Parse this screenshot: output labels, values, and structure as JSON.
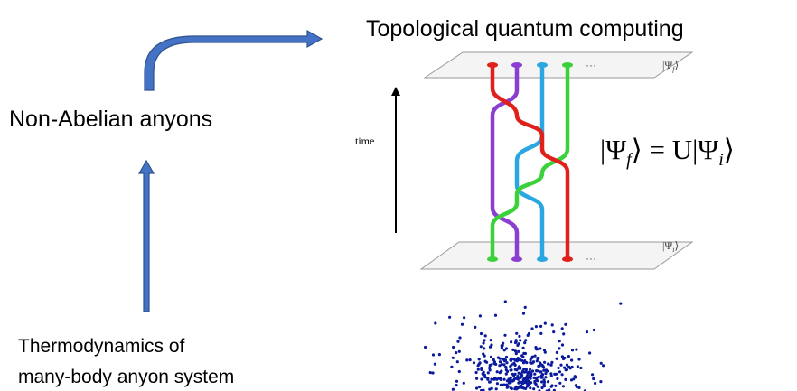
{
  "top_label": "Topological quantum computing",
  "middle_label": "Non-Abelian anyons",
  "bottom_label": {
    "lines": [
      "Thermodynamics of",
      "many-body anyon system"
    ]
  },
  "braid": {
    "axis_label": "time",
    "top_state": {
      "symbol": "|Ψ",
      "sub": "f",
      "close": "⟩"
    },
    "bottom_state": {
      "symbol": "|Ψ",
      "sub": "i",
      "close": "⟩"
    },
    "ellipsis": "···"
  },
  "equation": {
    "lhs": "|Ψ",
    "lhs_sub": "f",
    "middle": "⟩ = U|Ψ",
    "rhs_sub": "i",
    "end": "⟩"
  }
}
